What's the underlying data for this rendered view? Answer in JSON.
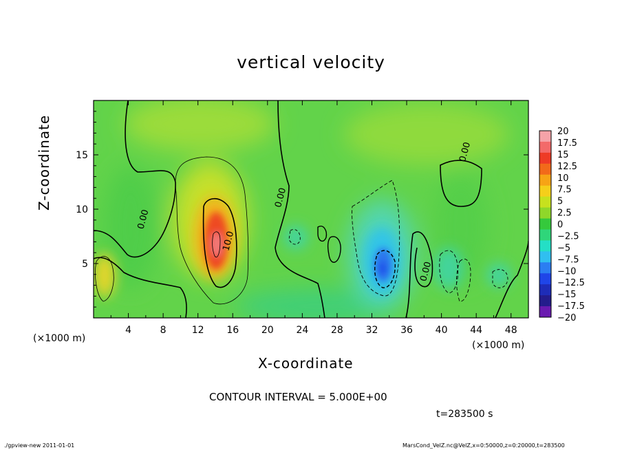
{
  "chart_data": {
    "type": "heatmap",
    "title": "vertical velocity",
    "xlabel": "X-coordinate",
    "ylabel": "Z-coordinate",
    "x_unit": "(×1000 m)",
    "z_unit": "(×1000 m)",
    "xlim": [
      0,
      50
    ],
    "ylim": [
      0,
      20
    ],
    "xticks": [
      4,
      8,
      12,
      16,
      20,
      24,
      28,
      32,
      36,
      40,
      44,
      48
    ],
    "yticks": [
      5,
      10,
      15
    ],
    "colorbar": {
      "levels": [
        20,
        17.5,
        15,
        12.5,
        10,
        7.5,
        5,
        2.5,
        0,
        -2.5,
        -5,
        -7.5,
        -10,
        -12.5,
        -15,
        -17.5,
        -20
      ],
      "labels": [
        "20",
        "17.5",
        "15",
        "12.5",
        "10",
        "7.5",
        "5",
        "2.5",
        "0",
        "−2.5",
        "−5",
        "−7.5",
        "−10",
        "−12.5",
        "−15",
        "−17.5",
        "−20"
      ],
      "colors": [
        "#f5a3a8",
        "#f36a6a",
        "#ee3b26",
        "#f26a1a",
        "#f7a415",
        "#f5cf1a",
        "#c7e11e",
        "#8fd72a",
        "#35c93c",
        "#2fd67a",
        "#24dfc6",
        "#30bff0",
        "#2b7ef2",
        "#1f45e8",
        "#1e2cb8",
        "#241c8c",
        "#6a1ab0"
      ]
    },
    "features": [
      {
        "x": 14,
        "z": 7.5,
        "value": 12,
        "kind": "updraft"
      },
      {
        "x": 1.2,
        "z": 4.5,
        "value": 5,
        "kind": "updraft"
      },
      {
        "x": 33,
        "z": 5,
        "value": -9,
        "kind": "downdraft"
      },
      {
        "x": 42,
        "z": 5,
        "value": -3,
        "kind": "downdraft"
      }
    ],
    "contour_labels": [
      {
        "text": "0.00",
        "x": 6.0,
        "z": 9.0
      },
      {
        "text": "0.00",
        "x": 21.8,
        "z": 11.0
      },
      {
        "text": "10.0",
        "x": 15.8,
        "z": 7.0
      },
      {
        "text": "0.00",
        "x": 38.5,
        "z": 4.2
      },
      {
        "text": "0.00",
        "x": 43.0,
        "z": 15.2
      }
    ],
    "contour_interval": "CONTOUR INTERVAL = 5.000E+00",
    "time": "t=283500 s"
  },
  "footer": {
    "left": "./gpview-new   2011-01-01",
    "right": "MarsCond_VelZ.nc@VelZ,x=0:50000,z=0:20000,t=283500"
  }
}
